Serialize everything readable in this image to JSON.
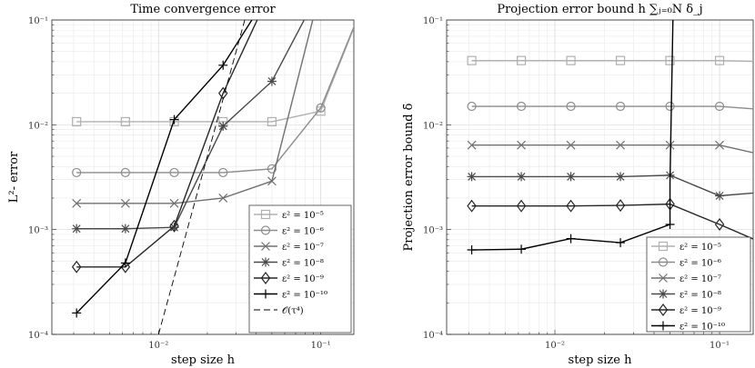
{
  "chart_data": [
    {
      "type": "line",
      "title": "Time convergence error",
      "xlabel": "step size h",
      "ylabel": "L²- error",
      "xscale": "log",
      "yscale": "log",
      "xlim": [
        0.0022,
        0.16
      ],
      "ylim": [
        0.0001,
        0.1
      ],
      "grid": true,
      "legend_position": "bottom-right",
      "x_tick_labels": [
        "10^{-2}",
        "10^{-1}"
      ],
      "y_tick_labels": [
        "10^{-4}",
        "10^{-3}",
        "10^{-2}",
        "10^{-1}"
      ],
      "series": [
        {
          "name": "ε² = 10^{-5}",
          "color": "#b0b0b0",
          "marker": "square",
          "x": [
            0.003125,
            0.00625,
            0.0125,
            0.025,
            0.05,
            0.1,
            0.2
          ],
          "y": [
            0.0107,
            0.0107,
            0.0107,
            0.0107,
            0.0107,
            0.0135,
            0.2
          ]
        },
        {
          "name": "ε² = 10^{-6}",
          "color": "#8c8c8c",
          "marker": "circle",
          "x": [
            0.003125,
            0.00625,
            0.0125,
            0.025,
            0.05,
            0.1,
            0.2
          ],
          "y": [
            0.0035,
            0.0035,
            0.0035,
            0.0035,
            0.0038,
            0.0145,
            0.2
          ]
        },
        {
          "name": "ε² = 10^{-7}",
          "color": "#707070",
          "marker": "x",
          "x": [
            0.003125,
            0.00625,
            0.0125,
            0.025,
            0.05,
            0.1
          ],
          "y": [
            0.00178,
            0.00178,
            0.00178,
            0.002,
            0.0029,
            0.2
          ]
        },
        {
          "name": "ε² = 10^{-8}",
          "color": "#4a4a4a",
          "marker": "asterisk",
          "x": [
            0.003125,
            0.00625,
            0.0125,
            0.025,
            0.05,
            0.1
          ],
          "y": [
            0.00102,
            0.00102,
            0.00105,
            0.0097,
            0.026,
            0.2
          ]
        },
        {
          "name": "ε² = 10^{-9}",
          "color": "#262626",
          "marker": "diamond",
          "x": [
            0.003125,
            0.00625,
            0.0125,
            0.025,
            0.05
          ],
          "y": [
            0.00044,
            0.00044,
            0.00108,
            0.02,
            0.2
          ]
        },
        {
          "name": "ε² = 10^{-10}",
          "color": "#000000",
          "marker": "plus",
          "x": [
            0.003125,
            0.00625,
            0.0125,
            0.025,
            0.05
          ],
          "y": [
            0.00016,
            0.00048,
            0.0112,
            0.037,
            0.2
          ]
        },
        {
          "name": "𝒪(τ⁴)",
          "color": "#000000",
          "marker": "none",
          "dashed": true,
          "x": [
            0.01,
            0.034
          ],
          "y": [
            0.0001,
            0.1
          ]
        }
      ]
    },
    {
      "type": "line",
      "title": "Projection error bound h ∑_{j=0}^{N} δ_j",
      "xlabel": "step size h",
      "ylabel": "Projection error bound δ̄",
      "xscale": "log",
      "yscale": "log",
      "xlim": [
        0.0022,
        0.16
      ],
      "ylim": [
        0.0001,
        0.1
      ],
      "grid": true,
      "legend_position": "bottom-right",
      "x_tick_labels": [
        "10^{-2}",
        "10^{-1}"
      ],
      "y_tick_labels": [
        "10^{-4}",
        "10^{-3}",
        "10^{-2}",
        "10^{-1}"
      ],
      "series": [
        {
          "name": "ε² = 10^{-5}",
          "color": "#b0b0b0",
          "marker": "square",
          "x": [
            0.003125,
            0.00625,
            0.0125,
            0.025,
            0.05,
            0.1,
            0.2
          ],
          "y": [
            0.041,
            0.041,
            0.041,
            0.041,
            0.041,
            0.041,
            0.04
          ]
        },
        {
          "name": "ε² = 10^{-6}",
          "color": "#8c8c8c",
          "marker": "circle",
          "x": [
            0.003125,
            0.00625,
            0.0125,
            0.025,
            0.05,
            0.1,
            0.2
          ],
          "y": [
            0.015,
            0.015,
            0.015,
            0.015,
            0.015,
            0.015,
            0.0138
          ]
        },
        {
          "name": "ε² = 10^{-7}",
          "color": "#707070",
          "marker": "x",
          "x": [
            0.003125,
            0.00625,
            0.0125,
            0.025,
            0.05,
            0.1,
            0.2
          ],
          "y": [
            0.0064,
            0.0064,
            0.0064,
            0.0064,
            0.0064,
            0.0064,
            0.005
          ]
        },
        {
          "name": "ε² = 10^{-8}",
          "color": "#4a4a4a",
          "marker": "asterisk",
          "x": [
            0.003125,
            0.00625,
            0.0125,
            0.025,
            0.05,
            0.1,
            0.2
          ],
          "y": [
            0.0032,
            0.0032,
            0.0032,
            0.0032,
            0.0033,
            0.0021,
            0.0023
          ]
        },
        {
          "name": "ε² = 10^{-9}",
          "color": "#262626",
          "marker": "diamond",
          "x": [
            0.003125,
            0.00625,
            0.0125,
            0.025,
            0.05,
            0.1,
            0.2
          ],
          "y": [
            0.00168,
            0.00168,
            0.00168,
            0.0017,
            0.00175,
            0.00112,
            0.0007
          ]
        },
        {
          "name": "ε² = 10^{-10}",
          "color": "#000000",
          "marker": "plus",
          "x": [
            0.003125,
            0.00625,
            0.0125,
            0.025,
            0.05,
            0.05,
            0.0525
          ],
          "y": [
            0.00064,
            0.00065,
            0.00082,
            0.00075,
            0.00112,
            0.0028,
            0.2
          ]
        }
      ]
    }
  ]
}
